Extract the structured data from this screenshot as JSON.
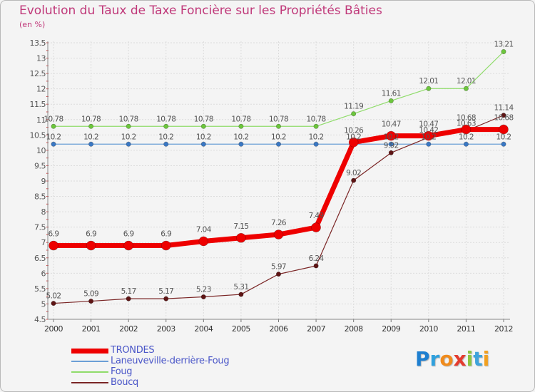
{
  "title": "Evolution du Taux de Taxe Foncière sur les Propriétés Bâties",
  "unit_label": "(en %)",
  "logo": {
    "letters": [
      "P",
      "r",
      "o",
      "x",
      "i",
      "t",
      "i"
    ],
    "colors": [
      "#1e7fd0",
      "#2fa0dd",
      "#f08b1c",
      "#e43c2f",
      "#8cc63f",
      "#3fa3db",
      "#f2a01f"
    ]
  },
  "chart_data": {
    "type": "line",
    "title": "Evolution du Taux de Taxe Foncière sur les Propriétés Bâties",
    "ylabel": "(en %)",
    "xlabel": "",
    "ylim": [
      4.5,
      13.5
    ],
    "yticks": [
      "4.5",
      "5",
      "5.5",
      "6",
      "6.5",
      "7",
      "7.5",
      "8",
      "8.5",
      "9",
      "9.5",
      "10",
      "10.5",
      "11",
      "11.5",
      "12",
      "12.5",
      "13",
      "13.5"
    ],
    "categories": [
      "2000",
      "2001",
      "2002",
      "2003",
      "2004",
      "2005",
      "2006",
      "2007",
      "2008",
      "2009",
      "2010",
      "2011",
      "2012"
    ],
    "legend_position": "bottom-left",
    "series": [
      {
        "name": "Laneuveville-derrière-Foug",
        "color": "#6b9fd6",
        "marker": "#3a78c4",
        "values": [
          10.2,
          10.2,
          10.2,
          10.2,
          10.2,
          10.2,
          10.2,
          10.2,
          10.2,
          10.2,
          10.2,
          10.2,
          10.2
        ],
        "labels": [
          "10.2",
          "10.2",
          "10.2",
          "10.2",
          "10.2",
          "10.2",
          "10.2",
          "10.2",
          "10.2",
          "10.2",
          "10.2",
          "10.2",
          "10.2"
        ]
      },
      {
        "name": "Foug",
        "color": "#8fdc6a",
        "marker": "#6cc63c",
        "values": [
          10.78,
          10.78,
          10.78,
          10.78,
          10.78,
          10.78,
          10.78,
          10.78,
          11.19,
          11.61,
          12.01,
          12.01,
          13.21
        ],
        "labels": [
          "10.78",
          "10.78",
          "10.78",
          "10.78",
          "10.78",
          "10.78",
          "10.78",
          "10.78",
          "11.19",
          "11.61",
          "12.01",
          "12.01",
          "13.21"
        ]
      },
      {
        "name": "Boucq",
        "color": "#7a2525",
        "marker": "#5e1414",
        "values": [
          5.02,
          5.09,
          5.17,
          5.17,
          5.23,
          5.31,
          5.97,
          6.24,
          9.02,
          9.92,
          10.42,
          10.63,
          11.14
        ],
        "labels": [
          "5.02",
          "5.09",
          "5.17",
          "5.17",
          "5.23",
          "5.31",
          "5.97",
          "6.24",
          "9.02",
          "9.92",
          "10.42",
          "10.63",
          "11.14"
        ]
      },
      {
        "name": "TRONDES",
        "color": "#ee0000",
        "marker": "#ee0000",
        "values": [
          6.9,
          6.9,
          6.9,
          6.9,
          7.04,
          7.15,
          7.26,
          7.49,
          10.26,
          10.47,
          10.47,
          10.68,
          10.68
        ],
        "labels": [
          "6.9",
          "6.9",
          "6.9",
          "6.9",
          "7.04",
          "7.15",
          "7.26",
          "7.49",
          "10.26",
          "10.47",
          "10.47",
          "10.68",
          "10.68"
        ]
      }
    ],
    "legend_order": [
      "TRONDES",
      "Laneuveville-derrière-Foug",
      "Foug",
      "Boucq"
    ]
  }
}
